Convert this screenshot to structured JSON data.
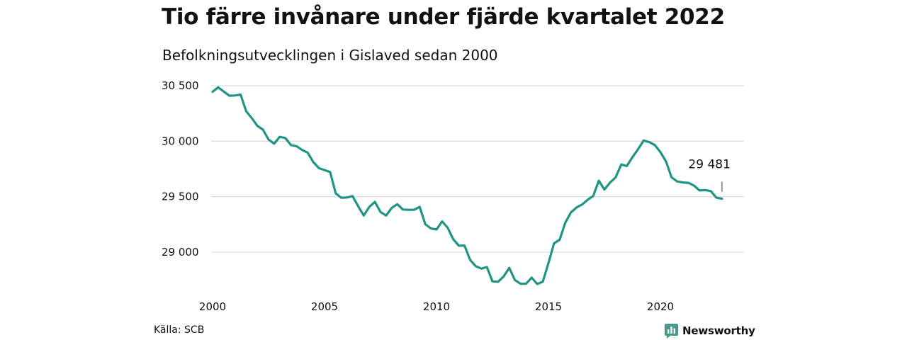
{
  "title": "Tio färre invånare under fjärde kvartalet 2022",
  "subtitle": "Befolkningsutvecklingen i Gislaved sedan 2000",
  "source": "Källa: SCB",
  "brand": {
    "name": "Newsworthy",
    "icon": "newsworthy-logo-icon",
    "color": "#4a9688"
  },
  "colors": {
    "line": "#1e9484",
    "grid": "#dddddd",
    "text": "#111111"
  },
  "chart_data": {
    "type": "line",
    "title": "Tio färre invånare under fjärde kvartalet 2022",
    "subtitle": "Befolkningsutvecklingen i Gislaved sedan 2000",
    "xlabel": "",
    "ylabel": "",
    "grid": "horizontal",
    "legend": "none",
    "xlim": [
      2000.0,
      2022.75
    ],
    "ylim": [
      28700,
      30550
    ],
    "x_ticks": [
      2000,
      2005,
      2010,
      2015,
      2020
    ],
    "x_tick_labels": [
      "2000",
      "2005",
      "2010",
      "2015",
      "2020"
    ],
    "y_ticks": [
      29000,
      29500,
      30000,
      30500
    ],
    "y_tick_labels": [
      "29 000",
      "29 500",
      "30 000",
      "30 500"
    ],
    "end_label": "29 481",
    "series": [
      {
        "x": [
          2000.0,
          2000.25,
          2000.5,
          2000.75,
          2001.0,
          2001.25,
          2001.5,
          2001.75,
          2002.0,
          2002.25,
          2002.5,
          2002.75,
          2003.0,
          2003.25,
          2003.5,
          2003.75,
          2004.0,
          2004.25,
          2004.5,
          2004.75,
          2005.0,
          2005.25,
          2005.5,
          2005.75,
          2006.0,
          2006.25,
          2006.5,
          2006.75,
          2007.0,
          2007.25,
          2007.5,
          2007.75,
          2008.0,
          2008.25,
          2008.5,
          2008.75,
          2009.0,
          2009.25,
          2009.5,
          2009.75,
          2010.0,
          2010.25,
          2010.5,
          2010.75,
          2011.0,
          2011.25,
          2011.5,
          2011.75,
          2012.0,
          2012.25,
          2012.5,
          2012.75,
          2013.0,
          2013.25,
          2013.5,
          2013.75,
          2014.0,
          2014.25,
          2014.5,
          2014.75,
          2015.0,
          2015.25,
          2015.5,
          2015.75,
          2016.0,
          2016.25,
          2016.5,
          2016.75,
          2017.0,
          2017.25,
          2017.5,
          2017.75,
          2018.0,
          2018.25,
          2018.5,
          2018.75,
          2019.0,
          2019.25,
          2019.5,
          2019.75,
          2020.0,
          2020.25,
          2020.5,
          2020.75,
          2021.0,
          2021.25,
          2021.5,
          2021.75,
          2022.0,
          2022.25,
          2022.5,
          2022.75
        ],
        "values": [
          30445,
          30485,
          30447,
          30410,
          30412,
          30420,
          30270,
          30208,
          30138,
          30104,
          30015,
          29978,
          30039,
          30028,
          29965,
          29955,
          29921,
          29896,
          29811,
          29757,
          29740,
          29722,
          29530,
          29490,
          29493,
          29505,
          29415,
          29330,
          29408,
          29453,
          29362,
          29330,
          29398,
          29432,
          29384,
          29382,
          29382,
          29408,
          29252,
          29214,
          29204,
          29277,
          29220,
          29116,
          29058,
          29060,
          28931,
          28874,
          28852,
          28866,
          28737,
          28733,
          28781,
          28858,
          28749,
          28716,
          28715,
          28770,
          28713,
          28735,
          28902,
          29080,
          29112,
          29265,
          29357,
          29402,
          29429,
          29472,
          29506,
          29644,
          29564,
          29627,
          29674,
          29790,
          29776,
          29856,
          29927,
          30006,
          29992,
          29965,
          29902,
          29817,
          29674,
          29637,
          29628,
          29625,
          29600,
          29556,
          29560,
          29550,
          29491,
          29481
        ]
      }
    ]
  }
}
